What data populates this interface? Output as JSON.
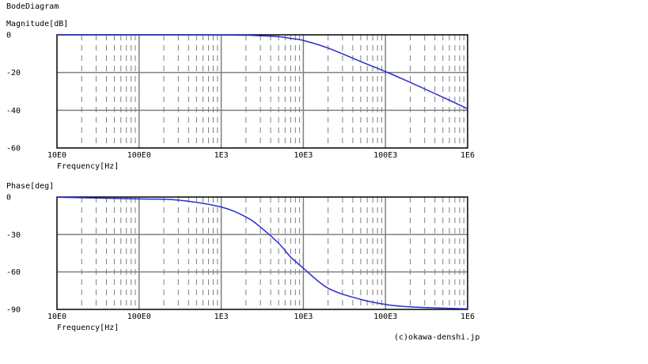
{
  "title": "BodeDiagram",
  "credit": "(c)okawa-denshi.jp",
  "colors": {
    "curve": "#2b2bd6",
    "grid": "#808080",
    "minor": "#808080",
    "frame": "#000000"
  },
  "chart_data": [
    {
      "type": "line",
      "ylabel": "Magnitude[dB]",
      "xlabel": "Frequency[Hz]",
      "xscale": "log",
      "xlim": [
        10,
        1000000
      ],
      "ylim": [
        -60,
        0
      ],
      "xticks": [
        "10E0",
        "100E0",
        "1E3",
        "10E3",
        "100E3",
        "1E6"
      ],
      "yticks": [
        "0",
        "-20",
        "-40",
        "-60"
      ],
      "grid": true,
      "series": [
        {
          "x": [
            10,
            100,
            1000,
            2000,
            3000,
            5000,
            7000,
            10000,
            20000,
            50000,
            100000,
            200000,
            500000,
            1000000
          ],
          "y": [
            0,
            0,
            -0.1,
            -0.2,
            -0.5,
            -1,
            -1.9,
            -3,
            -7,
            -14.2,
            -19.5,
            -25.2,
            -33.1,
            -39.2
          ]
        }
      ]
    },
    {
      "type": "line",
      "ylabel": "Phase[deg]",
      "xlabel": "Frequency[Hz]",
      "xscale": "log",
      "xlim": [
        10,
        1000000
      ],
      "ylim": [
        -90,
        0
      ],
      "xticks": [
        "10E0",
        "100E0",
        "1E3",
        "10E3",
        "100E3",
        "1E6"
      ],
      "yticks": [
        "0",
        "-30",
        "-60",
        "-90"
      ],
      "grid": true,
      "series": [
        {
          "x": [
            10,
            100,
            300,
            1000,
            2000,
            3000,
            5000,
            7000,
            10000,
            20000,
            50000,
            100000,
            200000,
            500000,
            1000000
          ],
          "y": [
            -0.2,
            -1.5,
            -2.5,
            -8,
            -16,
            -24,
            -37,
            -48,
            -57,
            -73,
            -82,
            -86,
            -88,
            -89,
            -89.5
          ]
        }
      ]
    }
  ]
}
